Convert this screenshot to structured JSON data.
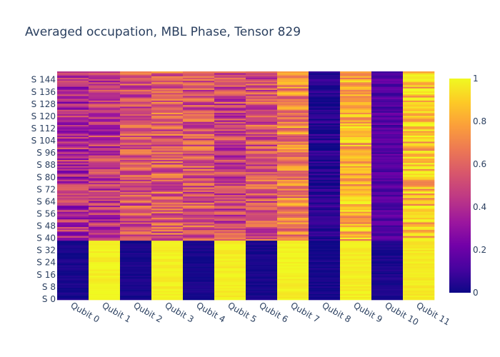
{
  "chart_data": {
    "type": "heatmap",
    "title": "Averaged occupation, MBL Phase, Tensor 829",
    "x_categories": [
      "Qubit 0",
      "Qubit 1",
      "Qubit 2",
      "Qubit 3",
      "Qubit 4",
      "Qubit 5",
      "Qubit 6",
      "Qubit 7",
      "Qubit 8",
      "Qubit 9",
      "Qubit 10",
      "Qubit 11"
    ],
    "y_range": [
      0,
      150
    ],
    "y_tick_labels": [
      "S 0",
      "S 8",
      "S 16",
      "S 24",
      "S 32",
      "S 40",
      "S 48",
      "S 56",
      "S 64",
      "S 72",
      "S 80",
      "S 88",
      "S 96",
      "S 104",
      "S 112",
      "S 120",
      "S 128",
      "S 136",
      "S 144"
    ],
    "colorscale": "plasma",
    "colorbar": {
      "min": 0,
      "max": 1,
      "tick_labels": [
        "0",
        "0.2",
        "0.4",
        "0.6",
        "0.8",
        "1"
      ]
    },
    "column_value_profiles": [
      {
        "qubit": "Qubit 0",
        "rows_0_to_38": 0.02,
        "rows_39_to_149": 0.4
      },
      {
        "qubit": "Qubit 1",
        "rows_0_to_38": 0.98,
        "rows_39_to_149": 0.45
      },
      {
        "qubit": "Qubit 2",
        "rows_0_to_38": 0.02,
        "rows_39_to_149": 0.55
      },
      {
        "qubit": "Qubit 3",
        "rows_0_to_38": 0.97,
        "rows_39_to_149": 0.58
      },
      {
        "qubit": "Qubit 4",
        "rows_0_to_38": 0.02,
        "rows_39_to_149": 0.55
      },
      {
        "qubit": "Qubit 5",
        "rows_0_to_38": 0.97,
        "rows_39_to_149": 0.5
      },
      {
        "qubit": "Qubit 6",
        "rows_0_to_38": 0.02,
        "rows_39_to_149": 0.55
      },
      {
        "qubit": "Qubit 7",
        "rows_0_to_38": 0.98,
        "rows_39_to_149": 0.7
      },
      {
        "qubit": "Qubit 8",
        "rows_0_to_38": 0.02,
        "rows_39_to_149": 0.05
      },
      {
        "qubit": "Qubit 9",
        "rows_0_to_38": 0.97,
        "rows_39_to_149": 0.8
      },
      {
        "qubit": "Qubit 10",
        "rows_0_to_38": 0.03,
        "rows_39_to_149": 0.15
      },
      {
        "qubit": "Qubit 11",
        "rows_0_to_38": 0.96,
        "rows_39_to_149": 0.85
      }
    ]
  }
}
